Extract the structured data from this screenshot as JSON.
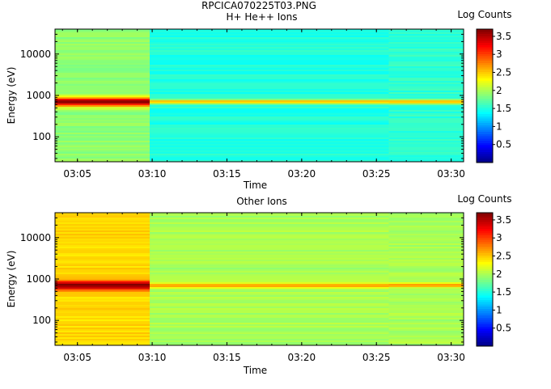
{
  "figure_title": "RPCICA070225T03.PNG",
  "chart_data": [
    {
      "type": "heatmap",
      "title": "H+ He++ Ions",
      "xlabel": "Time",
      "ylabel": "Energy (eV)",
      "x_ticks": [
        "03:05",
        "03:10",
        "03:15",
        "03:20",
        "03:25",
        "03:30"
      ],
      "x_range": [
        "03:03:30",
        "03:30:50"
      ],
      "y_scale": "log",
      "y_range": [
        25,
        40000
      ],
      "y_ticks": [
        100,
        1000,
        10000
      ],
      "y_tick_labels": [
        "100",
        "1000",
        "10000"
      ],
      "colorbar": {
        "label": "Log Counts",
        "range": [
          0,
          3.7
        ],
        "ticks": [
          "0.5",
          "1",
          "1.5",
          "2",
          "2.5",
          "3",
          "3.5"
        ]
      },
      "segments": [
        {
          "start": "03:03:30",
          "end": "03:09:50",
          "background_log_counts": 1.9,
          "peak_energy_ev": 700,
          "peak_log_counts": 3.6
        },
        {
          "start": "03:09:50",
          "end": "03:25:50",
          "background_log_counts": 1.5,
          "peak_energy_ev": 700,
          "peak_log_counts": 2.6
        },
        {
          "start": "03:25:50",
          "end": "03:30:50",
          "background_log_counts": 1.55,
          "peak_energy_ev": 700,
          "peak_log_counts": 2.6
        }
      ]
    },
    {
      "type": "heatmap",
      "title": "Other Ions",
      "xlabel": "Time",
      "ylabel": "Energy (eV)",
      "x_ticks": [
        "03:05",
        "03:10",
        "03:15",
        "03:20",
        "03:25",
        "03:30"
      ],
      "x_range": [
        "03:03:30",
        "03:30:50"
      ],
      "y_scale": "log",
      "y_range": [
        25,
        40000
      ],
      "y_ticks": [
        100,
        1000,
        10000
      ],
      "y_tick_labels": [
        "100",
        "1000",
        "10000"
      ],
      "colorbar": {
        "label": "Log Counts",
        "range": [
          0,
          3.7
        ],
        "ticks": [
          "0.5",
          "1",
          "1.5",
          "2",
          "2.5",
          "3",
          "3.5"
        ]
      },
      "segments": [
        {
          "start": "03:03:30",
          "end": "03:09:50",
          "background_log_counts": 2.45,
          "peak_energy_ev": 700,
          "peak_log_counts": 3.7
        },
        {
          "start": "03:09:50",
          "end": "03:25:50",
          "background_log_counts": 2.0,
          "peak_energy_ev": 700,
          "peak_log_counts": 2.7
        },
        {
          "start": "03:25:50",
          "end": "03:30:50",
          "background_log_counts": 2.0,
          "peak_energy_ev": 700,
          "peak_log_counts": 2.7
        }
      ]
    }
  ]
}
